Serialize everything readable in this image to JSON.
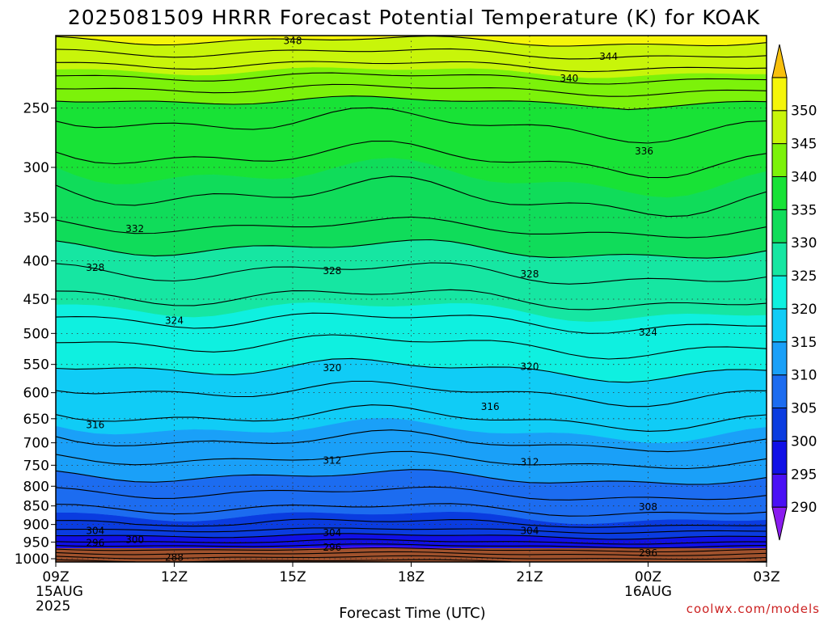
{
  "chart_data": {
    "type": "heatmap",
    "title": "2025081509 HRRR Forecast Potential Temperature (K) for KOAK",
    "xlabel": "Forecast Time (UTC)",
    "ylabel": "",
    "credit": "coolwx.com/models",
    "x_ticks": [
      {
        "hours": 0,
        "label": "09Z",
        "sub": [
          "15AUG",
          "2025"
        ]
      },
      {
        "hours": 3,
        "label": "12Z",
        "sub": []
      },
      {
        "hours": 6,
        "label": "15Z",
        "sub": []
      },
      {
        "hours": 9,
        "label": "18Z",
        "sub": []
      },
      {
        "hours": 12,
        "label": "21Z",
        "sub": []
      },
      {
        "hours": 15,
        "label": "00Z",
        "sub": [
          "16AUG"
        ]
      },
      {
        "hours": 18,
        "label": "03Z",
        "sub": []
      }
    ],
    "xlim_hours": [
      0,
      18
    ],
    "y_ticks": [
      250,
      300,
      350,
      400,
      450,
      500,
      550,
      600,
      650,
      700,
      750,
      800,
      850,
      900,
      950,
      1000
    ],
    "ylim_hpa": [
      1010,
      200
    ],
    "y_scale": "log-pressure",
    "surface_pressure": 1010,
    "colorbar": {
      "labels": [
        290,
        295,
        300,
        305,
        310,
        315,
        320,
        325,
        330,
        335,
        340,
        345,
        350
      ],
      "range": [
        285,
        355
      ],
      "colors": [
        "#8a1cf0",
        "#4a10f5",
        "#1010e6",
        "#0a3ce0",
        "#1c6cf0",
        "#1aa0f8",
        "#10ccf6",
        "#0ff0e0",
        "#16e6a2",
        "#10dc5a",
        "#18e236",
        "#7cf20a",
        "#c8f50a",
        "#f5f50a",
        "#f8c00c"
      ]
    },
    "shading_levels": [
      285,
      290,
      295,
      300,
      305,
      310,
      315,
      320,
      325,
      330,
      335,
      340,
      345,
      350,
      355
    ],
    "contour_interval": 2,
    "contour_labels": [
      {
        "value": 348,
        "hours": 6.0,
        "hpa": 203
      },
      {
        "value": 344,
        "hours": 14.0,
        "hpa": 213
      },
      {
        "value": 340,
        "hours": 13.0,
        "hpa": 228
      },
      {
        "value": 336,
        "hours": 14.9,
        "hpa": 285
      },
      {
        "value": 332,
        "hours": 2.0,
        "hpa": 362
      },
      {
        "value": 328,
        "hours": 1.0,
        "hpa": 408
      },
      {
        "value": 328,
        "hours": 7.0,
        "hpa": 412
      },
      {
        "value": 328,
        "hours": 12.0,
        "hpa": 416
      },
      {
        "value": 324,
        "hours": 3.0,
        "hpa": 480
      },
      {
        "value": 324,
        "hours": 15.0,
        "hpa": 498
      },
      {
        "value": 320,
        "hours": 7.0,
        "hpa": 555
      },
      {
        "value": 320,
        "hours": 12.0,
        "hpa": 553
      },
      {
        "value": 316,
        "hours": 1.0,
        "hpa": 662
      },
      {
        "value": 316,
        "hours": 11.0,
        "hpa": 626
      },
      {
        "value": 312,
        "hours": 7.0,
        "hpa": 738
      },
      {
        "value": 312,
        "hours": 12.0,
        "hpa": 742
      },
      {
        "value": 308,
        "hours": 15.0,
        "hpa": 852
      },
      {
        "value": 304,
        "hours": 1.0,
        "hpa": 917
      },
      {
        "value": 304,
        "hours": 7.0,
        "hpa": 922
      },
      {
        "value": 304,
        "hours": 12.0,
        "hpa": 917
      },
      {
        "value": 300,
        "hours": 2.0,
        "hpa": 942
      },
      {
        "value": 296,
        "hours": 1.0,
        "hpa": 952
      },
      {
        "value": 296,
        "hours": 7.0,
        "hpa": 965
      },
      {
        "value": 296,
        "hours": 15.0,
        "hpa": 982
      },
      {
        "value": 288,
        "hours": 3.0,
        "hpa": 995
      }
    ],
    "grid": "dotted",
    "legend": "colorbar-right"
  }
}
